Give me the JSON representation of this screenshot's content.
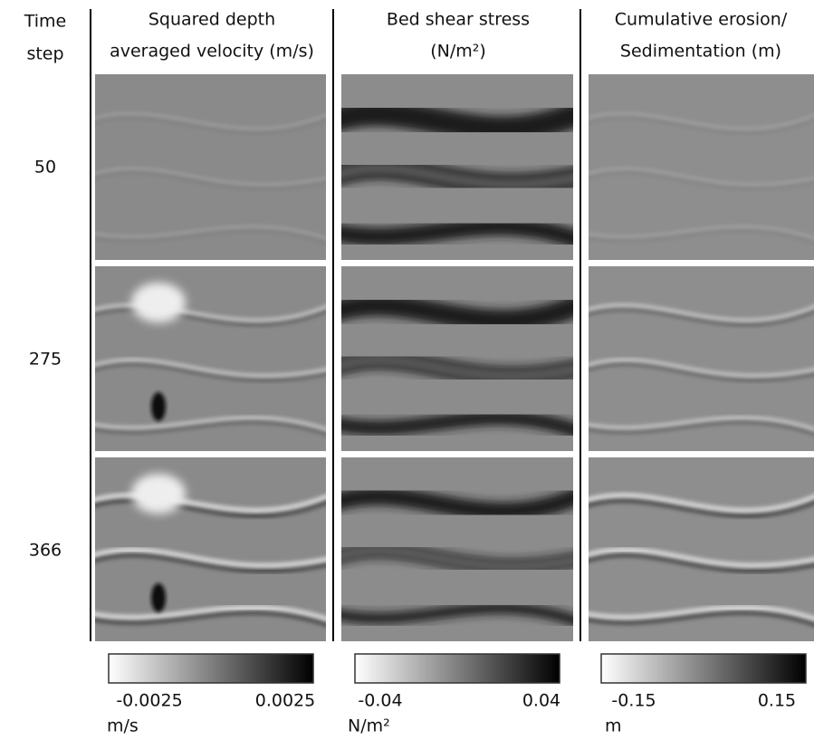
{
  "header": {
    "row_label": [
      "Time",
      "step"
    ],
    "columns": [
      [
        "Squared depth",
        "averaged velocity (m/s)"
      ],
      [
        "Bed shear stress",
        "(N/m²)"
      ],
      [
        "Cumulative erosion/",
        "Sedimentation (m)"
      ]
    ]
  },
  "rows": [
    "50",
    "275",
    "366"
  ],
  "colorbars": [
    {
      "min": "-0.0025",
      "max": "0.0025",
      "unit": "m/s"
    },
    {
      "min": "-0.04",
      "max": "0.04",
      "unit": "N/m²"
    },
    {
      "min": "-0.15",
      "max": "0.15",
      "unit": "m"
    }
  ]
}
